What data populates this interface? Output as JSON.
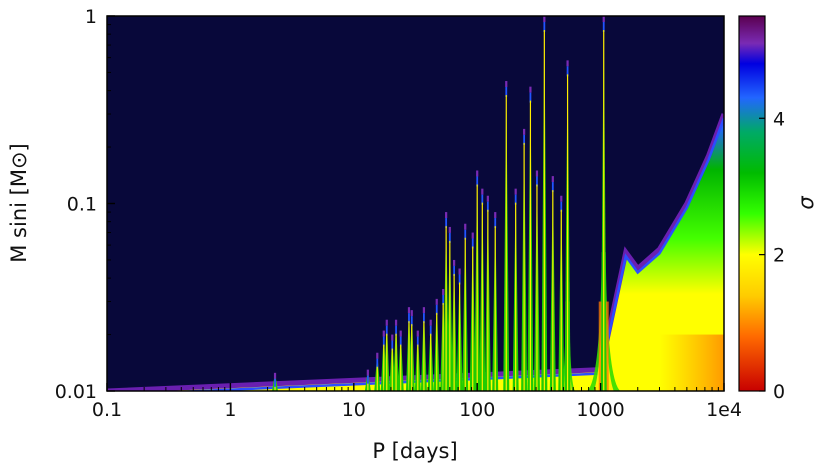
{
  "chart_data": {
    "type": "heatmap",
    "x_axis": {
      "label": "P [days]",
      "scale": "log",
      "range": [
        0.1,
        10000
      ],
      "ticks": [
        {
          "value": 0.1,
          "label": "0.1"
        },
        {
          "value": 1,
          "label": "1"
        },
        {
          "value": 10,
          "label": "10"
        },
        {
          "value": 100,
          "label": "100"
        },
        {
          "value": 1000,
          "label": "1000"
        },
        {
          "value": 10000,
          "label": "1e4"
        }
      ]
    },
    "y_axis": {
      "label": "M sini [M⊙]",
      "scale": "log",
      "range": [
        0.01,
        1
      ],
      "ticks": [
        {
          "value": 0.01,
          "label": "0.01"
        },
        {
          "value": 0.1,
          "label": "0.1"
        },
        {
          "value": 1,
          "label": "1"
        }
      ]
    },
    "colorbar": {
      "label": "σ",
      "range": [
        0,
        5.5
      ],
      "ticks": [
        {
          "value": 0,
          "label": "0"
        },
        {
          "value": 2,
          "label": "2"
        },
        {
          "value": 4,
          "label": "4"
        }
      ],
      "colors": [
        {
          "value": 0.0,
          "color": "#c80000"
        },
        {
          "value": 0.8,
          "color": "#ff6a00"
        },
        {
          "value": 1.4,
          "color": "#ffcc00"
        },
        {
          "value": 2.0,
          "color": "#ffff00"
        },
        {
          "value": 2.6,
          "color": "#33ff00"
        },
        {
          "value": 3.2,
          "color": "#00bb00"
        },
        {
          "value": 3.8,
          "color": "#00aa66"
        },
        {
          "value": 4.3,
          "color": "#2266ff"
        },
        {
          "value": 4.8,
          "color": "#0000e0"
        },
        {
          "value": 5.1,
          "color": "#7a2ab4"
        },
        {
          "value": 5.5,
          "color": "#5a004f"
        }
      ]
    },
    "background_color": "#08083a",
    "threshold_curve": [
      {
        "P": 0.1,
        "Msini": 0.01
      },
      {
        "P": 1000,
        "Msini": 0.013
      },
      {
        "P": 1600,
        "Msini": 0.055
      },
      {
        "P": 2000,
        "Msini": 0.045
      },
      {
        "P": 3000,
        "Msini": 0.057
      },
      {
        "P": 5000,
        "Msini": 0.1
      },
      {
        "P": 7500,
        "Msini": 0.18
      },
      {
        "P": 10000,
        "Msini": 0.3
      }
    ],
    "spikes": [
      {
        "P": 2.3,
        "top": 0.0125
      },
      {
        "P": 13,
        "top": 0.013
      },
      {
        "P": 15.5,
        "top": 0.016
      },
      {
        "P": 17.5,
        "top": 0.021
      },
      {
        "P": 18.5,
        "top": 0.024
      },
      {
        "P": 20.5,
        "top": 0.02
      },
      {
        "P": 22,
        "top": 0.024
      },
      {
        "P": 24,
        "top": 0.021
      },
      {
        "P": 28,
        "top": 0.028
      },
      {
        "P": 29.5,
        "top": 0.027
      },
      {
        "P": 33,
        "top": 0.021
      },
      {
        "P": 37,
        "top": 0.028
      },
      {
        "P": 42,
        "top": 0.024
      },
      {
        "P": 47,
        "top": 0.031
      },
      {
        "P": 53,
        "top": 0.035
      },
      {
        "P": 56,
        "top": 0.09
      },
      {
        "P": 60,
        "top": 0.075
      },
      {
        "P": 65,
        "top": 0.05
      },
      {
        "P": 72,
        "top": 0.045
      },
      {
        "P": 80,
        "top": 0.078
      },
      {
        "P": 92,
        "top": 0.07
      },
      {
        "P": 100,
        "top": 0.15
      },
      {
        "P": 110,
        "top": 0.12
      },
      {
        "P": 122,
        "top": 0.11
      },
      {
        "P": 140,
        "top": 0.09
      },
      {
        "P": 172,
        "top": 0.45
      },
      {
        "P": 205,
        "top": 0.12
      },
      {
        "P": 240,
        "top": 0.25
      },
      {
        "P": 270,
        "top": 0.42
      },
      {
        "P": 305,
        "top": 0.15
      },
      {
        "P": 350,
        "top": 1.0
      },
      {
        "P": 410,
        "top": 0.14
      },
      {
        "P": 480,
        "top": 0.11
      },
      {
        "P": 540,
        "top": 0.58
      },
      {
        "P": 1060,
        "top": 1.0
      }
    ],
    "notches": [
      {
        "P": 540,
        "top": 0.038,
        "halfwidth": 0.02
      },
      {
        "P": 1060,
        "top": 0.055,
        "halfwidth": 0.045
      }
    ]
  }
}
